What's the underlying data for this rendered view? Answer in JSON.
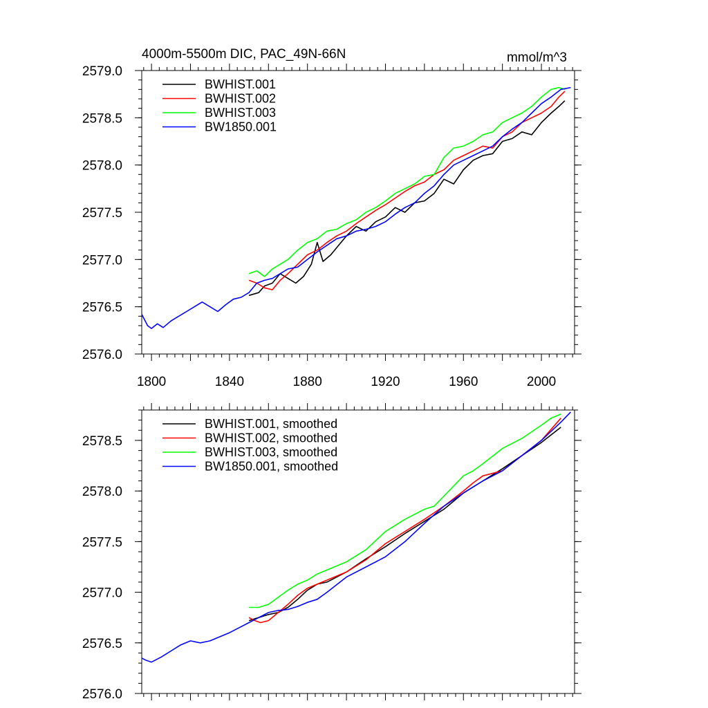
{
  "chart_data": [
    {
      "type": "line",
      "title_left": "4000m-5500m DIC, PAC_49N-66N",
      "title_right": "mmol/m^3",
      "xlim": [
        1795,
        2017
      ],
      "ylim": [
        2576.0,
        2579.0
      ],
      "xticks": [
        "1800",
        "1840",
        "1880",
        "1920",
        "1960",
        "2000"
      ],
      "xtick_values": [
        1800,
        1840,
        1880,
        1920,
        1960,
        2000
      ],
      "yticks": [
        "2576.0",
        "2576.5",
        "2577.0",
        "2577.5",
        "2578.0",
        "2578.5",
        "2579.0"
      ],
      "ytick_values": [
        2576.0,
        2576.5,
        2577.0,
        2577.5,
        2578.0,
        2578.5,
        2579.0
      ],
      "legend": "top-left",
      "series": [
        {
          "name": "BWHIST.001",
          "color": "#000000",
          "x": [
            1850,
            1855,
            1858,
            1862,
            1866,
            1870,
            1874,
            1878,
            1882,
            1885,
            1888,
            1892,
            1896,
            1900,
            1905,
            1910,
            1915,
            1920,
            1925,
            1930,
            1935,
            1940,
            1945,
            1950,
            1955,
            1960,
            1965,
            1970,
            1975,
            1980,
            1985,
            1990,
            1995,
            2000,
            2005,
            2009,
            2012
          ],
          "y": [
            2576.62,
            2576.65,
            2576.72,
            2576.75,
            2576.85,
            2576.8,
            2576.75,
            2576.82,
            2576.95,
            2577.18,
            2576.98,
            2577.05,
            2577.15,
            2577.25,
            2577.35,
            2577.3,
            2577.4,
            2577.45,
            2577.55,
            2577.5,
            2577.6,
            2577.62,
            2577.7,
            2577.85,
            2577.8,
            2577.95,
            2578.05,
            2578.1,
            2578.12,
            2578.25,
            2578.28,
            2578.35,
            2578.32,
            2578.45,
            2578.55,
            2578.62,
            2578.68
          ]
        },
        {
          "name": "BWHIST.002",
          "color": "#ff0000",
          "x": [
            1850,
            1854,
            1858,
            1862,
            1866,
            1870,
            1875,
            1880,
            1885,
            1890,
            1895,
            1900,
            1905,
            1910,
            1915,
            1920,
            1925,
            1930,
            1935,
            1940,
            1945,
            1950,
            1955,
            1960,
            1965,
            1970,
            1975,
            1980,
            1985,
            1990,
            1995,
            2000,
            2005,
            2009,
            2012
          ],
          "y": [
            2576.78,
            2576.75,
            2576.7,
            2576.68,
            2576.78,
            2576.85,
            2576.95,
            2577.05,
            2577.1,
            2577.18,
            2577.25,
            2577.3,
            2577.38,
            2577.45,
            2577.52,
            2577.58,
            2577.65,
            2577.72,
            2577.78,
            2577.82,
            2577.9,
            2577.95,
            2578.05,
            2578.1,
            2578.15,
            2578.2,
            2578.18,
            2578.3,
            2578.35,
            2578.45,
            2578.5,
            2578.55,
            2578.62,
            2578.72,
            2578.78
          ]
        },
        {
          "name": "BWHIST.003",
          "color": "#00ff00",
          "x": [
            1850,
            1854,
            1858,
            1862,
            1866,
            1870,
            1875,
            1880,
            1885,
            1890,
            1895,
            1900,
            1905,
            1910,
            1915,
            1920,
            1925,
            1930,
            1935,
            1940,
            1945,
            1950,
            1955,
            1960,
            1965,
            1970,
            1975,
            1980,
            1985,
            1990,
            1995,
            2000,
            2005,
            2009,
            2012
          ],
          "y": [
            2576.85,
            2576.88,
            2576.82,
            2576.9,
            2576.95,
            2577.0,
            2577.1,
            2577.18,
            2577.22,
            2577.3,
            2577.32,
            2577.38,
            2577.42,
            2577.5,
            2577.55,
            2577.62,
            2577.7,
            2577.75,
            2577.8,
            2577.88,
            2577.9,
            2578.08,
            2578.18,
            2578.2,
            2578.25,
            2578.32,
            2578.35,
            2578.45,
            2578.5,
            2578.55,
            2578.62,
            2578.72,
            2578.8,
            2578.82,
            2578.8
          ]
        },
        {
          "name": "BW1850.001",
          "color": "#0000ff",
          "x": [
            1795,
            1798,
            1800,
            1803,
            1806,
            1810,
            1814,
            1818,
            1822,
            1826,
            1830,
            1834,
            1838,
            1842,
            1846,
            1850,
            1854,
            1858,
            1862,
            1866,
            1870,
            1875,
            1880,
            1885,
            1890,
            1895,
            1900,
            1905,
            1910,
            1915,
            1920,
            1925,
            1930,
            1935,
            1940,
            1945,
            1950,
            1955,
            1960,
            1965,
            1970,
            1975,
            1980,
            1985,
            1990,
            1995,
            2000,
            2005,
            2010,
            2015
          ],
          "y": [
            2576.42,
            2576.3,
            2576.27,
            2576.32,
            2576.28,
            2576.35,
            2576.4,
            2576.45,
            2576.5,
            2576.55,
            2576.5,
            2576.45,
            2576.52,
            2576.58,
            2576.6,
            2576.65,
            2576.75,
            2576.78,
            2576.8,
            2576.85,
            2576.9,
            2576.92,
            2577.0,
            2577.08,
            2577.15,
            2577.22,
            2577.25,
            2577.3,
            2577.32,
            2577.35,
            2577.4,
            2577.48,
            2577.55,
            2577.6,
            2577.7,
            2577.78,
            2577.9,
            2578.0,
            2578.05,
            2578.1,
            2578.15,
            2578.2,
            2578.3,
            2578.38,
            2578.45,
            2578.55,
            2578.65,
            2578.72,
            2578.8,
            2578.82
          ]
        }
      ]
    },
    {
      "type": "line",
      "xlim": [
        1795,
        2017
      ],
      "ylim": [
        2576.0,
        2578.8
      ],
      "xtick_values": [
        1800,
        1840,
        1880,
        1920,
        1960,
        2000
      ],
      "yticks": [
        "2576.0",
        "2576.5",
        "2577.0",
        "2577.5",
        "2578.0",
        "2578.5"
      ],
      "ytick_values": [
        2576.0,
        2576.5,
        2577.0,
        2577.5,
        2578.0,
        2578.5
      ],
      "legend": "top-left",
      "series": [
        {
          "name": "BWHIST.001, smoothed",
          "color": "#000000",
          "x": [
            1850,
            1855,
            1860,
            1865,
            1870,
            1875,
            1880,
            1885,
            1890,
            1900,
            1910,
            1920,
            1930,
            1940,
            1950,
            1960,
            1970,
            1980,
            1990,
            2000,
            2010
          ],
          "y": [
            2576.72,
            2576.75,
            2576.78,
            2576.8,
            2576.85,
            2576.93,
            2577.02,
            2577.08,
            2577.1,
            2577.2,
            2577.33,
            2577.45,
            2577.58,
            2577.7,
            2577.82,
            2577.98,
            2578.1,
            2578.22,
            2578.35,
            2578.48,
            2578.63
          ]
        },
        {
          "name": "BWHIST.002, smoothed",
          "color": "#ff0000",
          "x": [
            1850,
            1853,
            1856,
            1860,
            1865,
            1870,
            1875,
            1880,
            1885,
            1890,
            1900,
            1910,
            1920,
            1930,
            1940,
            1950,
            1960,
            1965,
            1970,
            1980,
            1990,
            2000,
            2010
          ],
          "y": [
            2576.75,
            2576.72,
            2576.7,
            2576.72,
            2576.8,
            2576.88,
            2576.97,
            2577.04,
            2577.08,
            2577.12,
            2577.2,
            2577.32,
            2577.48,
            2577.6,
            2577.72,
            2577.85,
            2578.0,
            2578.08,
            2578.15,
            2578.2,
            2578.35,
            2578.5,
            2578.72
          ]
        },
        {
          "name": "BWHIST.003, smoothed",
          "color": "#00ff00",
          "x": [
            1850,
            1855,
            1860,
            1865,
            1870,
            1875,
            1880,
            1885,
            1890,
            1900,
            1910,
            1920,
            1930,
            1940,
            1945,
            1950,
            1960,
            1965,
            1970,
            1980,
            1990,
            2000,
            2005,
            2010
          ],
          "y": [
            2576.85,
            2576.85,
            2576.88,
            2576.95,
            2577.02,
            2577.08,
            2577.12,
            2577.18,
            2577.22,
            2577.3,
            2577.42,
            2577.6,
            2577.72,
            2577.82,
            2577.85,
            2577.95,
            2578.15,
            2578.2,
            2578.27,
            2578.42,
            2578.52,
            2578.65,
            2578.72,
            2578.76
          ]
        },
        {
          "name": "BW1850.001, smoothed",
          "color": "#0000ff",
          "x": [
            1795,
            1797,
            1800,
            1805,
            1810,
            1815,
            1820,
            1825,
            1830,
            1835,
            1840,
            1845,
            1850,
            1855,
            1860,
            1865,
            1870,
            1875,
            1880,
            1885,
            1890,
            1900,
            1910,
            1920,
            1930,
            1940,
            1950,
            1960,
            1970,
            1980,
            1990,
            2000,
            2010,
            2015
          ],
          "y": [
            2576.35,
            2576.33,
            2576.31,
            2576.36,
            2576.42,
            2576.48,
            2576.52,
            2576.5,
            2576.52,
            2576.56,
            2576.6,
            2576.65,
            2576.7,
            2576.75,
            2576.8,
            2576.82,
            2576.83,
            2576.86,
            2576.9,
            2576.93,
            2577.0,
            2577.15,
            2577.25,
            2577.35,
            2577.5,
            2577.68,
            2577.85,
            2577.98,
            2578.1,
            2578.2,
            2578.35,
            2578.5,
            2578.68,
            2578.78
          ]
        }
      ]
    }
  ]
}
